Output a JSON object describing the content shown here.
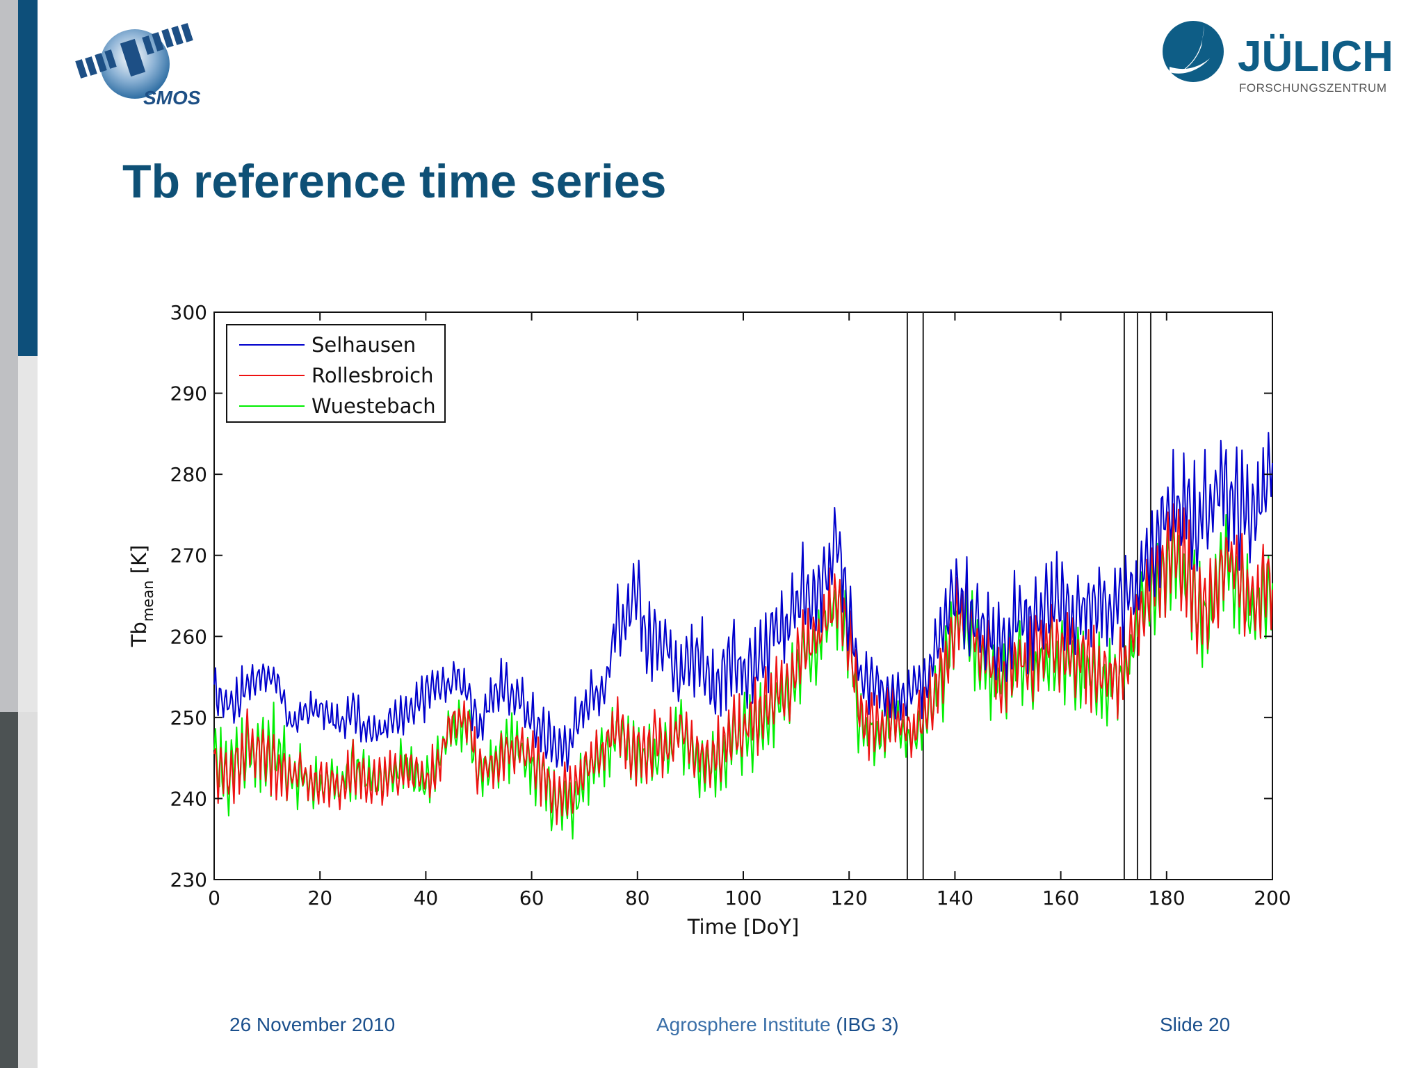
{
  "slide": {
    "title": "Tb reference time series",
    "footer": {
      "date": "26 November 2010",
      "institute": "Agrosphere Institute",
      "institute_code": "(IBG 3)",
      "slide_number": "Slide 20"
    },
    "logos": {
      "left": {
        "text": "SMOS",
        "icon": "satellite-icon"
      },
      "right": {
        "name": "JÜLICH",
        "subtitle": "FORSCHUNGSZENTRUM",
        "icon": "julich-swoosh-icon"
      }
    },
    "colors": {
      "accent": "#0e5076",
      "footer": "#1a4f8c"
    }
  },
  "chart_data": {
    "type": "line",
    "xlabel": "Time [DoY]",
    "ylabel_main": "Tb",
    "ylabel_sub": "mean",
    "ylabel_unit": " [K]",
    "xlim": [
      0,
      200
    ],
    "ylim": [
      230,
      300
    ],
    "xticks": [
      0,
      20,
      40,
      60,
      80,
      100,
      120,
      140,
      160,
      180,
      200
    ],
    "yticks": [
      230,
      240,
      250,
      260,
      270,
      280,
      290,
      300
    ],
    "grid": false,
    "legend_position": "top-left",
    "vertical_lines": [
      131,
      134,
      172,
      174.5,
      177
    ],
    "series": [
      {
        "name": "Selhausen",
        "color": "#0000cc",
        "x": [
          0,
          2,
          4,
          6,
          8,
          10,
          12,
          14,
          16,
          18,
          20,
          22,
          24,
          26,
          28,
          30,
          32,
          34,
          36,
          38,
          40,
          42,
          44,
          46,
          48,
          50,
          52,
          54,
          56,
          58,
          60,
          62,
          64,
          66,
          68,
          70,
          72,
          74,
          76,
          78,
          80,
          82,
          84,
          86,
          88,
          90,
          92,
          94,
          96,
          98,
          100,
          102,
          104,
          106,
          108,
          110,
          112,
          114,
          116,
          118,
          120,
          122,
          124,
          126,
          128,
          130,
          132,
          134,
          136,
          138,
          140,
          142,
          144,
          146,
          148,
          150,
          152,
          154,
          156,
          158,
          160,
          162,
          164,
          166,
          168,
          170,
          172,
          174,
          176,
          178,
          180,
          182,
          184,
          186,
          188,
          190,
          192,
          194,
          196,
          198,
          200
        ],
        "mean": [
          253,
          252,
          252,
          254,
          255,
          255,
          255,
          249,
          250,
          251,
          251,
          250,
          249,
          252,
          249,
          248,
          249,
          250,
          250,
          251,
          253,
          254,
          254,
          255,
          253,
          249,
          252,
          254,
          253,
          252,
          250,
          248,
          247,
          246,
          248,
          252,
          253,
          254,
          262,
          262,
          265,
          259,
          260,
          259,
          256,
          257,
          258,
          254,
          255,
          257,
          255,
          256,
          259,
          261,
          261,
          263,
          266,
          264,
          268,
          272,
          262,
          255,
          254,
          253,
          254,
          253,
          254,
          254,
          258,
          261,
          265,
          264,
          262,
          261,
          259,
          260,
          263,
          262,
          263,
          264,
          264,
          263,
          263,
          264,
          264,
          263,
          264,
          266,
          269,
          272,
          276,
          275,
          276,
          274,
          276,
          279,
          277,
          276,
          275,
          277,
          280
        ],
        "amp": [
          3,
          3,
          3,
          3,
          2,
          2,
          2,
          2,
          2,
          2,
          2,
          2,
          2,
          3,
          2,
          2,
          2,
          2,
          3,
          3,
          3,
          2,
          2,
          2,
          3,
          3,
          3,
          3,
          3,
          3,
          3,
          4,
          4,
          4,
          4,
          3,
          3,
          3,
          4,
          4,
          5,
          5,
          4,
          4,
          5,
          5,
          5,
          5,
          5,
          6,
          5,
          5,
          6,
          6,
          5,
          6,
          6,
          5,
          6,
          6,
          5,
          4,
          4,
          4,
          4,
          3,
          3,
          4,
          4,
          5,
          6,
          6,
          5,
          5,
          5,
          5,
          6,
          6,
          6,
          6,
          6,
          6,
          5,
          5,
          5,
          5,
          5,
          6,
          6,
          7,
          7,
          7,
          7,
          7,
          7,
          7,
          7,
          7,
          6,
          6,
          6
        ]
      },
      {
        "name": "Rollesbroich",
        "color": "#ee1111",
        "x": [
          0,
          2,
          4,
          6,
          8,
          10,
          12,
          14,
          16,
          18,
          20,
          22,
          24,
          26,
          28,
          30,
          32,
          34,
          36,
          38,
          40,
          42,
          44,
          46,
          48,
          50,
          52,
          54,
          56,
          58,
          60,
          62,
          64,
          66,
          68,
          70,
          72,
          74,
          76,
          78,
          80,
          82,
          84,
          86,
          88,
          90,
          92,
          94,
          96,
          98,
          100,
          102,
          104,
          106,
          108,
          110,
          112,
          114,
          116,
          118,
          120,
          122,
          124,
          126,
          128,
          130,
          132,
          134,
          136,
          138,
          140,
          142,
          144,
          146,
          148,
          150,
          152,
          154,
          156,
          158,
          160,
          162,
          164,
          166,
          168,
          170,
          172,
          174,
          176,
          178,
          180,
          182,
          184,
          186,
          188,
          190,
          192,
          194,
          196,
          198,
          200
        ],
        "mean": [
          244,
          243,
          244,
          247,
          246,
          245,
          244,
          243,
          243,
          242,
          242,
          242,
          241,
          244,
          243,
          242,
          242,
          243,
          244,
          243,
          242,
          244,
          248,
          250,
          250,
          243,
          244,
          245,
          246,
          247,
          245,
          243,
          241,
          240,
          241,
          244,
          245,
          246,
          250,
          247,
          246,
          246,
          247,
          247,
          249,
          246,
          245,
          245,
          246,
          248,
          249,
          250,
          251,
          253,
          254,
          256,
          259,
          260,
          263,
          265,
          260,
          250,
          249,
          248,
          250,
          249,
          248,
          250,
          253,
          256,
          262,
          264,
          259,
          257,
          255,
          256,
          258,
          257,
          258,
          259,
          258,
          258,
          257,
          256,
          256,
          255,
          256,
          261,
          265,
          267,
          269,
          271,
          268,
          264,
          262,
          268,
          270,
          267,
          264,
          266,
          268
        ],
        "amp": [
          4,
          4,
          4,
          4,
          4,
          4,
          4,
          3,
          3,
          3,
          3,
          3,
          3,
          3,
          3,
          3,
          3,
          3,
          3,
          3,
          3,
          3,
          3,
          3,
          3,
          3,
          3,
          3,
          3,
          3,
          3,
          4,
          4,
          4,
          4,
          3,
          3,
          3,
          4,
          4,
          4,
          4,
          4,
          4,
          4,
          4,
          4,
          4,
          4,
          5,
          5,
          5,
          5,
          5,
          5,
          5,
          5,
          5,
          5,
          5,
          5,
          4,
          4,
          4,
          4,
          3,
          3,
          4,
          4,
          5,
          5,
          5,
          5,
          5,
          5,
          5,
          5,
          5,
          5,
          5,
          5,
          5,
          5,
          5,
          5,
          5,
          5,
          5,
          6,
          6,
          6,
          6,
          6,
          6,
          6,
          6,
          6,
          6,
          6,
          6,
          6
        ]
      },
      {
        "name": "Wuestebach",
        "color": "#00ee00",
        "x": [
          0,
          2,
          4,
          6,
          8,
          10,
          12,
          14,
          16,
          18,
          20,
          22,
          24,
          26,
          28,
          30,
          32,
          34,
          36,
          38,
          40,
          42,
          44,
          46,
          48,
          50,
          52,
          54,
          56,
          58,
          60,
          62,
          64,
          66,
          68,
          70,
          72,
          74,
          76,
          78,
          80,
          82,
          84,
          86,
          88,
          90,
          92,
          94,
          96,
          98,
          100,
          102,
          104,
          106,
          108,
          110,
          112,
          114,
          116,
          118,
          120,
          122,
          124,
          126,
          128,
          130,
          132,
          134,
          136,
          138,
          140,
          142,
          144,
          146,
          148,
          150,
          152,
          154,
          156,
          158,
          160,
          162,
          164,
          166,
          168,
          170,
          172,
          174,
          176,
          178,
          180,
          182,
          184,
          186,
          188,
          190,
          192,
          194,
          196,
          198,
          200
        ],
        "mean": [
          244,
          243,
          244,
          246,
          246,
          245,
          245,
          243,
          243,
          242,
          242,
          242,
          241,
          244,
          243,
          242,
          242,
          243,
          244,
          243,
          242,
          244,
          248,
          249,
          249,
          243,
          244,
          245,
          246,
          246,
          244,
          242,
          240,
          239,
          240,
          243,
          244,
          245,
          249,
          246,
          245,
          245,
          246,
          246,
          248,
          245,
          244,
          244,
          245,
          247,
          248,
          249,
          250,
          252,
          253,
          255,
          258,
          259,
          262,
          264,
          259,
          249,
          248,
          247,
          249,
          248,
          247,
          249,
          252,
          255,
          261,
          263,
          258,
          256,
          254,
          255,
          257,
          256,
          257,
          258,
          257,
          257,
          256,
          255,
          255,
          254,
          255,
          260,
          264,
          266,
          268,
          270,
          267,
          263,
          261,
          267,
          269,
          266,
          263,
          265,
          267
        ],
        "amp": [
          5,
          5,
          5,
          5,
          6,
          6,
          6,
          4,
          4,
          3,
          3,
          3,
          3,
          4,
          3,
          3,
          3,
          3,
          4,
          4,
          4,
          3,
          3,
          3,
          3,
          4,
          4,
          4,
          4,
          4,
          4,
          5,
          5,
          5,
          5,
          4,
          4,
          4,
          4,
          4,
          4,
          4,
          4,
          4,
          4,
          4,
          4,
          4,
          4,
          5,
          5,
          5,
          5,
          5,
          5,
          5,
          5,
          5,
          5,
          5,
          5,
          4,
          4,
          4,
          4,
          3,
          3,
          4,
          4,
          5,
          5,
          5,
          5,
          5,
          5,
          5,
          5,
          5,
          5,
          5,
          5,
          5,
          5,
          5,
          5,
          5,
          5,
          5,
          6,
          6,
          6,
          6,
          6,
          6,
          6,
          6,
          6,
          6,
          6,
          6,
          6
        ]
      }
    ]
  }
}
